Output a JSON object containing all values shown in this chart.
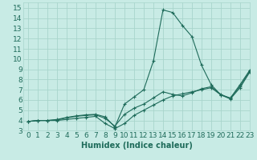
{
  "xlabel": "Humidex (Indice chaleur)",
  "xlim": [
    -0.5,
    23
  ],
  "ylim": [
    3,
    15.5
  ],
  "xticks": [
    0,
    1,
    2,
    3,
    4,
    5,
    6,
    7,
    8,
    9,
    10,
    11,
    12,
    13,
    14,
    15,
    16,
    17,
    18,
    19,
    20,
    21,
    22,
    23
  ],
  "yticks": [
    3,
    4,
    5,
    6,
    7,
    8,
    9,
    10,
    11,
    12,
    13,
    14,
    15
  ],
  "bg_color": "#c8ebe5",
  "grid_color": "#a8d5cc",
  "line_color": "#1e6b5a",
  "line1_x": [
    0,
    1,
    2,
    3,
    4,
    5,
    6,
    7,
    8,
    9,
    10,
    11,
    12,
    13,
    14,
    15,
    16,
    17,
    18,
    19,
    20,
    21,
    22,
    23
  ],
  "line1_y": [
    3.9,
    4.0,
    4.0,
    4.0,
    4.1,
    4.2,
    4.3,
    4.4,
    3.7,
    3.2,
    3.7,
    4.5,
    5.0,
    5.5,
    6.0,
    6.4,
    6.6,
    6.8,
    7.0,
    7.2,
    6.5,
    6.1,
    7.2,
    8.7
  ],
  "line2_x": [
    0,
    1,
    2,
    3,
    4,
    5,
    6,
    7,
    8,
    9,
    10,
    11,
    12,
    13,
    14,
    15,
    16,
    17,
    18,
    19,
    20,
    21,
    22,
    23
  ],
  "line2_y": [
    3.9,
    4.0,
    4.0,
    4.1,
    4.3,
    4.45,
    4.55,
    4.6,
    4.35,
    3.35,
    5.6,
    6.3,
    7.0,
    9.8,
    14.8,
    14.55,
    13.3,
    12.2,
    9.4,
    7.5,
    6.5,
    6.2,
    7.5,
    8.9
  ],
  "line3_x": [
    0,
    1,
    2,
    3,
    4,
    5,
    6,
    7,
    8,
    9,
    10,
    11,
    12,
    13,
    14,
    15,
    16,
    17,
    18,
    19,
    20,
    21,
    22,
    23
  ],
  "line3_y": [
    3.9,
    4.0,
    4.0,
    4.05,
    4.25,
    4.4,
    4.5,
    4.55,
    4.2,
    3.45,
    4.6,
    5.2,
    5.6,
    6.2,
    6.8,
    6.55,
    6.4,
    6.7,
    7.1,
    7.3,
    6.55,
    6.15,
    7.35,
    8.8
  ],
  "font_size_label": 7,
  "font_size_tick": 6.5
}
